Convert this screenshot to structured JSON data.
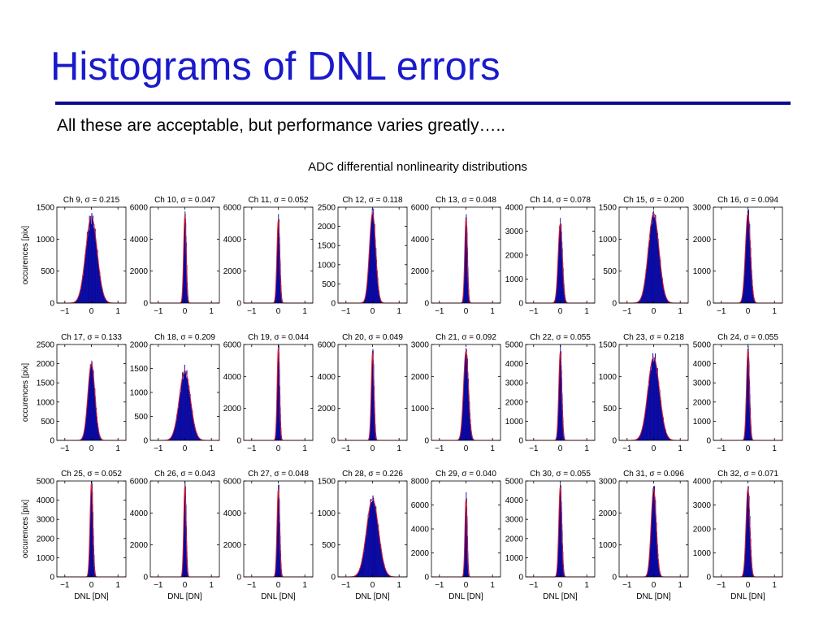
{
  "slide": {
    "title": "Histograms of DNL errors",
    "subtitle": "All these are acceptable, but performance varies greatly….."
  },
  "colors": {
    "title": "#1a1acc",
    "rule": "#0a0a8c",
    "histogram_fill": "#0a0aa0",
    "gaussian_fit": "#e0202a"
  },
  "chart_data": {
    "type": "histogram-grid",
    "title": "ADC differential nonlinearity distributions",
    "xlabel": "DNL [DN]",
    "ylabel": "occurences [pix]",
    "xlim": [
      -1.3,
      1.3
    ],
    "xticks": [
      -1,
      0,
      1
    ],
    "series_names": [
      "histogram",
      "gaussian fit"
    ],
    "panels": [
      {
        "label": "Ch 9, σ = 0.215",
        "sigma": 0.215,
        "peak": 1350,
        "ymax": 1500,
        "yticks": [
          0,
          500,
          1000,
          1500
        ]
      },
      {
        "label": "Ch 10, σ = 0.047",
        "sigma": 0.047,
        "peak": 5500,
        "ymax": 6000,
        "yticks": [
          0,
          2000,
          4000,
          6000
        ]
      },
      {
        "label": "Ch 11, σ = 0.052",
        "sigma": 0.052,
        "peak": 5200,
        "ymax": 6000,
        "yticks": [
          0,
          2000,
          4000,
          6000
        ]
      },
      {
        "label": "Ch 12, σ = 0.118",
        "sigma": 0.118,
        "peak": 2350,
        "ymax": 2500,
        "yticks": [
          0,
          500,
          1000,
          1500,
          2000,
          2500
        ]
      },
      {
        "label": "Ch 13, σ = 0.048",
        "sigma": 0.048,
        "peak": 5300,
        "ymax": 6000,
        "yticks": [
          0,
          2000,
          4000,
          6000
        ]
      },
      {
        "label": "Ch 14, σ = 0.078",
        "sigma": 0.078,
        "peak": 3300,
        "ymax": 4000,
        "yticks": [
          0,
          1000,
          2000,
          3000,
          4000
        ]
      },
      {
        "label": "Ch 15, σ = 0.200",
        "sigma": 0.2,
        "peak": 1400,
        "ymax": 1500,
        "yticks": [
          0,
          500,
          1000,
          1500
        ]
      },
      {
        "label": "Ch 16, σ = 0.094",
        "sigma": 0.094,
        "peak": 2800,
        "ymax": 3000,
        "yticks": [
          0,
          1000,
          2000,
          3000
        ]
      },
      {
        "label": "Ch 17, σ = 0.133",
        "sigma": 0.133,
        "peak": 2000,
        "ymax": 2500,
        "yticks": [
          0,
          500,
          1000,
          1500,
          2000,
          2500
        ]
      },
      {
        "label": "Ch 18, σ = 0.209",
        "sigma": 0.209,
        "peak": 1450,
        "ymax": 2000,
        "yticks": [
          0,
          500,
          1000,
          1500,
          2000
        ]
      },
      {
        "label": "Ch 19, σ = 0.044",
        "sigma": 0.044,
        "peak": 5800,
        "ymax": 6000,
        "yticks": [
          0,
          2000,
          4000,
          6000
        ]
      },
      {
        "label": "Ch 20, σ = 0.049",
        "sigma": 0.049,
        "peak": 5500,
        "ymax": 6000,
        "yticks": [
          0,
          2000,
          4000,
          6000
        ]
      },
      {
        "label": "Ch 21, σ = 0.092",
        "sigma": 0.092,
        "peak": 2800,
        "ymax": 3000,
        "yticks": [
          0,
          1000,
          2000,
          3000
        ]
      },
      {
        "label": "Ch 22, σ = 0.055",
        "sigma": 0.055,
        "peak": 4600,
        "ymax": 5000,
        "yticks": [
          0,
          1000,
          2000,
          3000,
          4000,
          5000
        ]
      },
      {
        "label": "Ch 23, σ = 0.218",
        "sigma": 0.218,
        "peak": 1300,
        "ymax": 1500,
        "yticks": [
          0,
          500,
          1000,
          1500
        ]
      },
      {
        "label": "Ch 24, σ = 0.055",
        "sigma": 0.055,
        "peak": 4700,
        "ymax": 5000,
        "yticks": [
          0,
          1000,
          2000,
          3000,
          4000,
          5000
        ]
      },
      {
        "label": "Ch 25, σ = 0.052",
        "sigma": 0.052,
        "peak": 4900,
        "ymax": 5000,
        "yticks": [
          0,
          1000,
          2000,
          3000,
          4000,
          5000
        ]
      },
      {
        "label": "Ch 26, σ = 0.043",
        "sigma": 0.043,
        "peak": 5700,
        "ymax": 6000,
        "yticks": [
          0,
          2000,
          4000,
          6000
        ]
      },
      {
        "label": "Ch 27, σ = 0.048",
        "sigma": 0.048,
        "peak": 5500,
        "ymax": 6000,
        "yticks": [
          0,
          2000,
          4000,
          6000
        ]
      },
      {
        "label": "Ch 28, σ = 0.226",
        "sigma": 0.226,
        "peak": 1220,
        "ymax": 1500,
        "yticks": [
          0,
          500,
          1000,
          1500
        ]
      },
      {
        "label": "Ch 29, σ = 0.040",
        "sigma": 0.04,
        "peak": 6500,
        "ymax": 8000,
        "yticks": [
          0,
          2000,
          4000,
          6000,
          8000
        ]
      },
      {
        "label": "Ch 30, σ = 0.055",
        "sigma": 0.055,
        "peak": 4700,
        "ymax": 5000,
        "yticks": [
          0,
          1000,
          2000,
          3000,
          4000,
          5000
        ]
      },
      {
        "label": "Ch 31, σ = 0.096",
        "sigma": 0.096,
        "peak": 2750,
        "ymax": 3000,
        "yticks": [
          0,
          1000,
          2000,
          3000
        ]
      },
      {
        "label": "Ch 32, σ = 0.071",
        "sigma": 0.071,
        "peak": 3700,
        "ymax": 4000,
        "yticks": [
          0,
          1000,
          2000,
          3000,
          4000
        ]
      }
    ]
  }
}
